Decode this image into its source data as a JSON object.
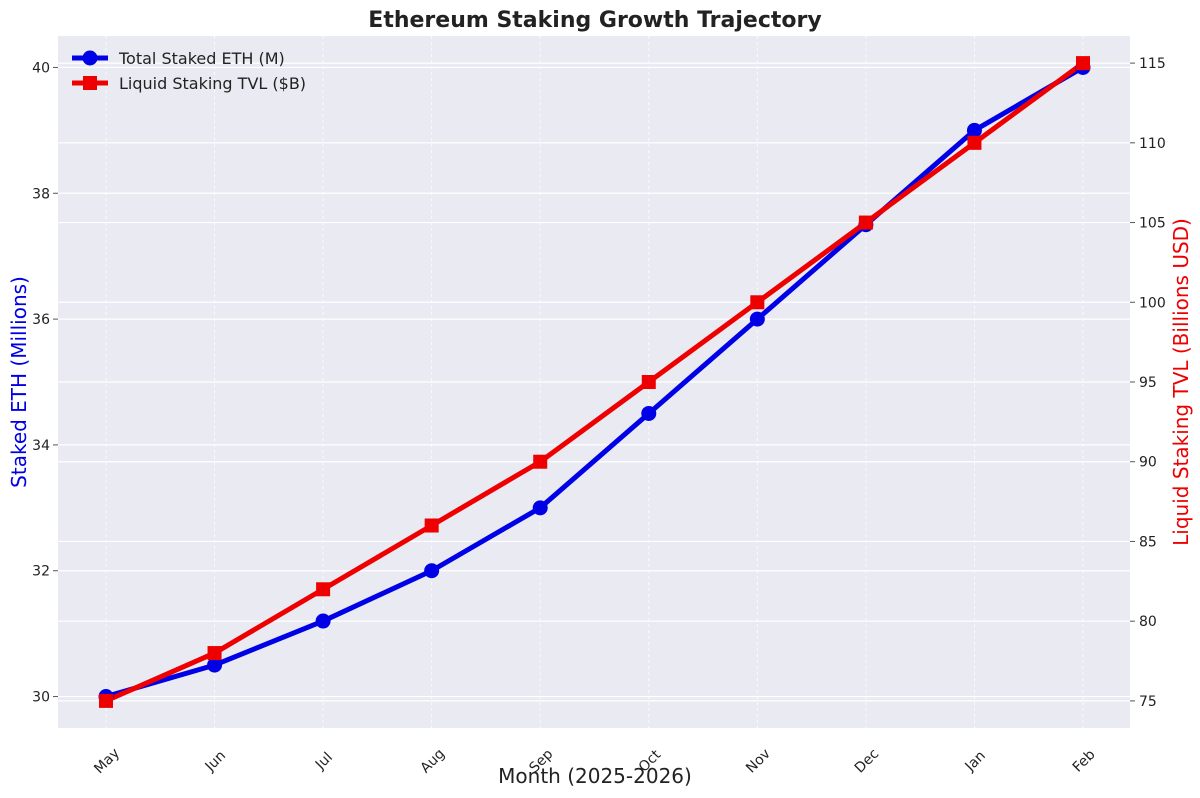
{
  "chart_data": {
    "type": "line",
    "title": "Ethereum Staking Growth Trajectory",
    "xlabel": "Month (2025-2026)",
    "ylabel_left": "Staked ETH (Millions)",
    "ylabel_right": "Liquid Staking TVL (Billions USD)",
    "categories": [
      "May",
      "Jun",
      "Jul",
      "Aug",
      "Sep",
      "Oct",
      "Nov",
      "Dec",
      "Jan",
      "Feb"
    ],
    "ylim_left": [
      29.5,
      40.5
    ],
    "ylim_right": [
      73.3,
      116.7
    ],
    "yticks_left": [
      30,
      32,
      34,
      36,
      38,
      40
    ],
    "yticks_right": [
      75,
      80,
      85,
      90,
      95,
      100,
      105,
      110,
      115
    ],
    "grid": true,
    "legend_position": "top-left",
    "series": [
      {
        "name": "Total Staked ETH (M)",
        "axis": "left",
        "color": "#0000e6",
        "marker": "circle",
        "values": [
          30.0,
          30.5,
          31.2,
          32.0,
          33.0,
          34.5,
          36.0,
          37.5,
          39.0,
          40.0
        ]
      },
      {
        "name": "Liquid Staking TVL ($B)",
        "axis": "right",
        "color": "#ee0000",
        "marker": "square",
        "values": [
          75,
          78,
          82,
          86,
          90,
          95,
          100,
          105,
          110,
          115
        ]
      }
    ]
  }
}
